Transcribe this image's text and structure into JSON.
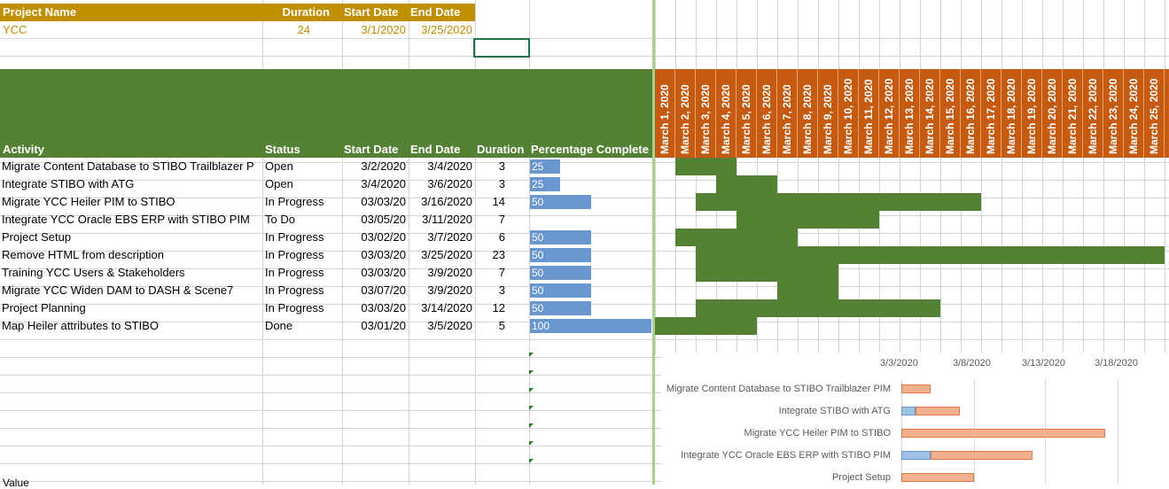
{
  "summary": {
    "headers": [
      "Project Name",
      "Duration",
      "Start Date",
      "End Date"
    ],
    "values": [
      "YCC",
      "24",
      "3/1/2020",
      "3/25/2020"
    ]
  },
  "table": {
    "headers": [
      "Activity",
      "Status",
      "Start Date",
      "End Date",
      "Duration",
      "Percentage Complete"
    ],
    "rows": [
      {
        "activity": "Migrate Content Database to STIBO Trailblazer P",
        "status": "Open",
        "start": "3/2/2020",
        "end": "3/4/2020",
        "duration": "3",
        "pct": "25",
        "pct_value": 25
      },
      {
        "activity": "Integrate STIBO with ATG",
        "status": "Open",
        "start": "3/4/2020",
        "end": "3/6/2020",
        "duration": "3",
        "pct": "25",
        "pct_value": 25
      },
      {
        "activity": "Migrate YCC Heiler PIM to STIBO",
        "status": "In Progress",
        "start": "03/03/20",
        "end": "3/16/2020",
        "duration": "14",
        "pct": "50",
        "pct_value": 50
      },
      {
        "activity": "Integrate YCC Oracle EBS ERP with STIBO PIM",
        "status": "To Do",
        "start": "03/05/20",
        "end": "3/11/2020",
        "duration": "7",
        "pct": "",
        "pct_value": 0
      },
      {
        "activity": "Project Setup",
        "status": "In Progress",
        "start": "03/02/20",
        "end": "3/7/2020",
        "duration": "6",
        "pct": "50",
        "pct_value": 50
      },
      {
        "activity": "Remove HTML from description",
        "status": "In Progress",
        "start": "03/03/20",
        "end": "3/25/2020",
        "duration": "23",
        "pct": "50",
        "pct_value": 50
      },
      {
        "activity": "Training YCC Users & Stakeholders",
        "status": "In Progress",
        "start": "03/03/20",
        "end": "3/9/2020",
        "duration": "7",
        "pct": "50",
        "pct_value": 50
      },
      {
        "activity": "Migrate YCC Widen DAM to DASH & Scene7",
        "status": "In Progress",
        "start": "03/07/20",
        "end": "3/9/2020",
        "duration": "3",
        "pct": "50",
        "pct_value": 50
      },
      {
        "activity": "Project Planning",
        "status": "In Progress",
        "start": "03/03/20",
        "end": "3/14/2020",
        "duration": "12",
        "pct": "50",
        "pct_value": 50
      },
      {
        "activity": "Map Heiler attributes to STIBO",
        "status": "Done",
        "start": "03/01/20",
        "end": "3/5/2020",
        "duration": "5",
        "pct": "100",
        "pct_value": 100
      }
    ]
  },
  "gantt": {
    "dates": [
      "March 1, 2020",
      "March 2, 2020",
      "March 3, 2020",
      "March 4, 2020",
      "March 5, 2020",
      "March 6, 2020",
      "March 7, 2020",
      "March 8, 2020",
      "March 9, 2020",
      "March 10, 2020",
      "March 11, 2020",
      "March 12, 2020",
      "March 13, 2020",
      "March 14, 2020",
      "March 15, 2020",
      "March 16, 2020",
      "March 17, 2020",
      "March 18, 2020",
      "March 19, 2020",
      "March 20, 2020",
      "March 21, 2020",
      "March 22, 2020",
      "March 23, 2020",
      "March 24, 2020",
      "March 25, 2020"
    ],
    "spans": [
      [
        2,
        4
      ],
      [
        4,
        6
      ],
      [
        3,
        16
      ],
      [
        5,
        11
      ],
      [
        2,
        7
      ],
      [
        3,
        25
      ],
      [
        3,
        9
      ],
      [
        7,
        9
      ],
      [
        3,
        14
      ],
      [
        1,
        5
      ]
    ],
    "fill_color": "#548235",
    "header_color": "#c55a11"
  },
  "chart_data": {
    "type": "bar",
    "orientation": "horizontal-stacked",
    "x_ticks": [
      "3/3/2020",
      "3/8/2020",
      "3/13/2020",
      "3/18/2020"
    ],
    "categories": [
      "Migrate Content Database to STIBO Trailblazer PIM",
      "Integrate STIBO with ATG",
      "Migrate YCC Heiler PIM to STIBO",
      "Integrate YCC Oracle EBS ERP with STIBO PIM",
      "Project Setup"
    ],
    "series": [
      {
        "values": [
          0,
          1,
          0,
          2,
          0
        ],
        "color": "#9dc3e6"
      },
      {
        "values": [
          2,
          3,
          14,
          7,
          5
        ],
        "color": "#f4b18e"
      }
    ],
    "starts": [
      "3/3/2020",
      "3/3/2020",
      "3/3/2020",
      "3/3/2020",
      "3/3/2020"
    ]
  },
  "footer_text": "Value"
}
